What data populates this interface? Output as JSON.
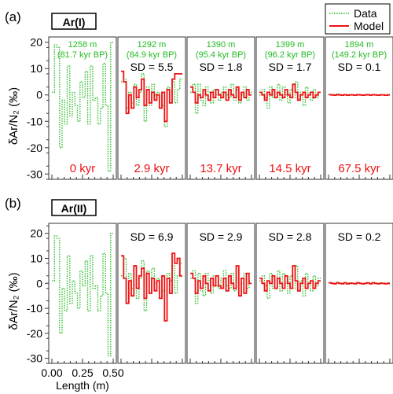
{
  "legend": {
    "placement": "top-right",
    "entries": [
      {
        "label": "Data",
        "color": "#22bb22",
        "style": "dotted"
      },
      {
        "label": "Model",
        "color": "#ee1111",
        "style": "solid"
      }
    ]
  },
  "colors": {
    "data": "#22bb22",
    "model": "#ee1111",
    "age": "#ee1111",
    "depth": "#22bb22",
    "axis": "#333333"
  },
  "chart_data": [
    {
      "type": "line",
      "panel_letter": "(a)",
      "title": "Ar(I)",
      "ylabel": "δAr/N₂ (‰)",
      "ylim": [
        -32,
        22
      ],
      "yticks": [
        20,
        10,
        0,
        -10,
        -20,
        -30
      ],
      "xlim": [
        0,
        0.5
      ],
      "grid": false,
      "subplots": [
        {
          "depth": "1258 m",
          "age_bp": "(81.7 kyr BP)",
          "sd": "",
          "elapsed": "0 kyr",
          "data": [
            1,
            19,
            18,
            -20,
            -2,
            -11,
            11,
            -8,
            1,
            -4,
            -10,
            5,
            -1,
            9,
            -11,
            11,
            -2,
            -1,
            -11,
            -5,
            12,
            -4,
            -29,
            20
          ],
          "model": []
        },
        {
          "depth": "1292 m",
          "age_bp": "(84.9 kyr BP)",
          "sd": "SD = 5.5",
          "elapsed": "2.9 kyr",
          "data": [
            5,
            6,
            -5,
            1,
            -3,
            4,
            -4,
            1,
            8,
            -10,
            3,
            -4,
            4,
            0,
            1,
            -5,
            -4,
            -12,
            3,
            0,
            5,
            -3,
            2,
            6
          ],
          "model": [
            9,
            5,
            -7,
            0,
            -5,
            3,
            -1,
            2,
            6,
            -4,
            2,
            -3,
            1,
            -2,
            0,
            -5,
            1,
            -10,
            2,
            -3,
            6,
            8,
            8,
            8
          ]
        },
        {
          "depth": "1390 m",
          "age_bp": "(95.4 kyr BP)",
          "sd": "SD = 1.8",
          "elapsed": "13.7 kyr",
          "data": [
            1,
            4,
            -7,
            4,
            -2,
            -4,
            3,
            1,
            -3,
            2,
            0,
            -2,
            1,
            3,
            0,
            -1,
            4,
            -2,
            2,
            -3,
            0,
            3,
            -2,
            1
          ],
          "model": [
            3,
            1,
            -3,
            0,
            -1,
            2,
            0,
            -2,
            1,
            -1,
            2,
            0,
            -1,
            1,
            -2,
            2,
            0,
            -1,
            3,
            -2,
            1,
            -1,
            2,
            0
          ]
        },
        {
          "depth": "1399 m",
          "age_bp": "(96.2 kyr BP)",
          "sd": "SD = 1.7",
          "elapsed": "14.5 kyr",
          "data": [
            0,
            2,
            -1,
            -5,
            3,
            -1,
            1,
            4,
            -2,
            3,
            0,
            -3,
            2,
            -1,
            5,
            -2,
            1,
            -4,
            3,
            0,
            -2,
            2,
            -1,
            1
          ],
          "model": [
            1,
            0,
            -2,
            1,
            0,
            2,
            -1,
            1,
            0,
            -1,
            2,
            0,
            -1,
            4,
            1,
            -2,
            0,
            1,
            -1,
            0,
            1,
            -1,
            0,
            1
          ]
        },
        {
          "depth": "1894 m",
          "age_bp": "(149.2 kyr BP)",
          "sd": "SD = 0.1",
          "elapsed": "67.5 kyr",
          "data": [
            0.2,
            0.1,
            -0.2,
            0.3,
            0,
            -0.1,
            0.2,
            -0.2,
            0.1,
            0,
            -0.1,
            0.2,
            0.1,
            -0.2,
            0,
            0.1,
            -0.1,
            0.2,
            0,
            -0.1,
            0.1,
            0,
            -0.1,
            0.1
          ],
          "model": [
            0.1,
            0,
            -0.1,
            0.1,
            0,
            -0.1,
            0.1,
            -0.1,
            0,
            0,
            -0.1,
            0.1,
            0,
            -0.1,
            0,
            0.1,
            -0.1,
            0.1,
            0,
            -0.1,
            0,
            0,
            -0.1,
            0
          ]
        }
      ]
    },
    {
      "type": "line",
      "panel_letter": "(b)",
      "title": "Ar(II)",
      "ylabel": "δAr/N₂ (‰)",
      "xlabel": "Length (m)",
      "ylim": [
        -32,
        24
      ],
      "yticks": [
        20,
        10,
        0,
        -10,
        -20,
        -30
      ],
      "xlim": [
        0,
        0.5
      ],
      "xticks": [
        "0.00",
        "0.25",
        "0.50"
      ],
      "grid": false,
      "subplots": [
        {
          "sd": "",
          "data": [
            1,
            19,
            18,
            -20,
            -2,
            -11,
            11,
            -8,
            1,
            -4,
            -10,
            5,
            -1,
            9,
            -11,
            11,
            -2,
            -1,
            -11,
            -5,
            12,
            -4,
            -29,
            20
          ],
          "model": []
        },
        {
          "sd": "SD = 6.9",
          "data": [
            3,
            10,
            -8,
            4,
            -2,
            7,
            -6,
            2,
            9,
            -11,
            5,
            -3,
            6,
            0,
            2,
            -6,
            -3,
            -14,
            4,
            1,
            7,
            -4,
            3,
            8
          ],
          "model": [
            11,
            2,
            -8,
            1,
            -5,
            7,
            -2,
            3,
            6,
            -6,
            4,
            -4,
            2,
            -3,
            1,
            -6,
            3,
            -15,
            2,
            -4,
            12,
            8,
            10,
            3
          ]
        },
        {
          "sd": "SD = 2.9",
          "data": [
            2,
            5,
            -8,
            4,
            -3,
            -5,
            4,
            1,
            -4,
            3,
            -1,
            -2,
            2,
            5,
            -1,
            -2,
            4,
            -3,
            2,
            -5,
            0,
            4,
            -2,
            1
          ],
          "model": [
            4,
            2,
            -4,
            1,
            -2,
            3,
            0,
            -3,
            2,
            -1,
            3,
            -1,
            -2,
            2,
            -3,
            3,
            0,
            -2,
            7,
            -5,
            2,
            -4,
            4,
            0
          ]
        },
        {
          "sd": "SD = 2.8",
          "data": [
            1,
            3,
            -1,
            -6,
            4,
            -2,
            2,
            5,
            -3,
            4,
            0,
            -4,
            3,
            -2,
            7,
            -3,
            1,
            -5,
            4,
            0,
            -3,
            3,
            -1,
            2
          ],
          "model": [
            2,
            0,
            -3,
            1,
            0,
            3,
            -2,
            2,
            0,
            -2,
            3,
            0,
            -2,
            7,
            1,
            -3,
            0,
            2,
            -2,
            0,
            1,
            -2,
            0,
            1
          ]
        },
        {
          "sd": "SD = 0.2",
          "data": [
            0.3,
            0.1,
            -0.3,
            0.4,
            0,
            -0.2,
            0.3,
            -0.3,
            0.2,
            0,
            -0.2,
            0.3,
            0.1,
            -0.3,
            0,
            0.2,
            -0.2,
            0.3,
            0,
            -0.2,
            0.2,
            0,
            -0.2,
            0.2
          ],
          "model": [
            0.2,
            0,
            -0.2,
            0.2,
            0,
            -0.2,
            0.2,
            -0.2,
            0,
            0,
            -0.2,
            0.2,
            0,
            -0.2,
            0,
            0.2,
            -0.2,
            0.2,
            0,
            -0.2,
            0,
            0,
            -0.2,
            0
          ]
        }
      ]
    }
  ]
}
